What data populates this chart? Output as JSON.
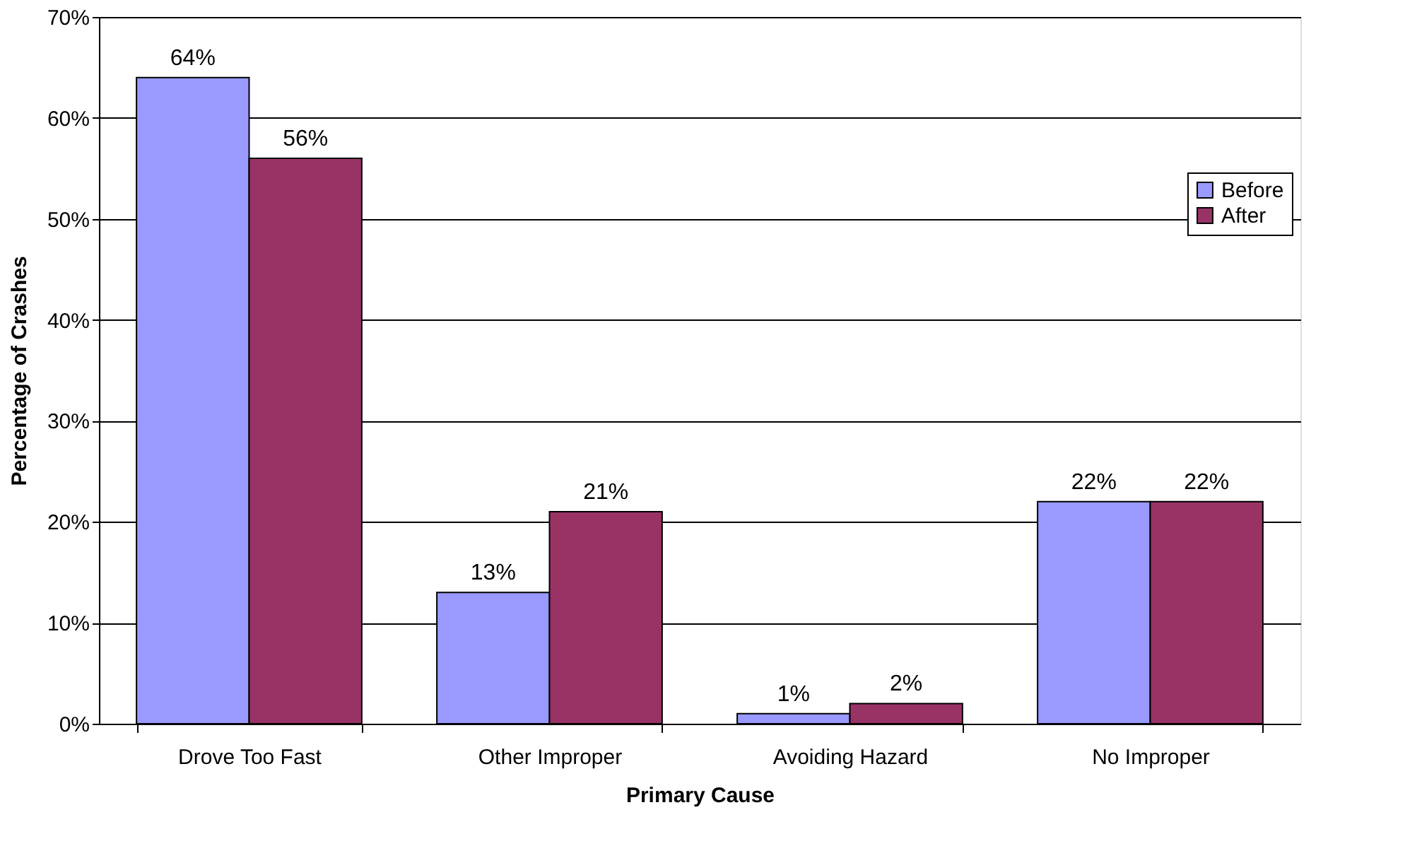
{
  "chart_data": {
    "type": "bar",
    "xlabel": "Primary Cause",
    "ylabel": "Percentage of Crashes",
    "categories": [
      "Drove Too Fast",
      "Other Improper",
      "Avoiding Hazard",
      "No Improper"
    ],
    "series": [
      {
        "name": "Before",
        "color": "#9999ff",
        "values": [
          64,
          13,
          1,
          22
        ],
        "value_labels": [
          "64%",
          "13%",
          "1%",
          "22%"
        ]
      },
      {
        "name": "After",
        "color": "#993366",
        "values": [
          56,
          21,
          2,
          22
        ],
        "value_labels": [
          "56%",
          "21%",
          "2%",
          "22%"
        ]
      }
    ],
    "ylim": [
      0,
      70
    ],
    "yticks": [
      {
        "value": 0,
        "label": "0%"
      },
      {
        "value": 10,
        "label": "10%"
      },
      {
        "value": 20,
        "label": "20%"
      },
      {
        "value": 30,
        "label": "30%"
      },
      {
        "value": 40,
        "label": "40%"
      },
      {
        "value": 50,
        "label": "50%"
      },
      {
        "value": 60,
        "label": "60%"
      },
      {
        "value": 70,
        "label": "70%"
      }
    ],
    "grid": "y",
    "legend": "top right"
  }
}
